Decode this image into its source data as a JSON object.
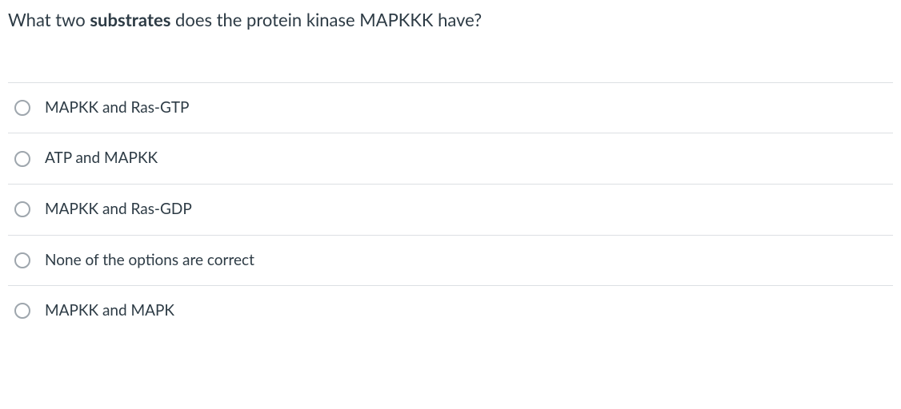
{
  "question": {
    "prefix": "What two ",
    "bold_word": "substrates",
    "suffix": " does the protein kinase MAPKKK have?"
  },
  "options": [
    {
      "label": "MAPKK and Ras-GTP"
    },
    {
      "label": "ATP and MAPKK"
    },
    {
      "label": "MAPKK and Ras-GDP"
    },
    {
      "label": "None of the options are correct"
    },
    {
      "label": "MAPKK and MAPK"
    }
  ],
  "colors": {
    "text": "#2d3b45",
    "border": "#dce0e3",
    "radio_border": "#9ea6ad",
    "background": "#ffffff"
  }
}
